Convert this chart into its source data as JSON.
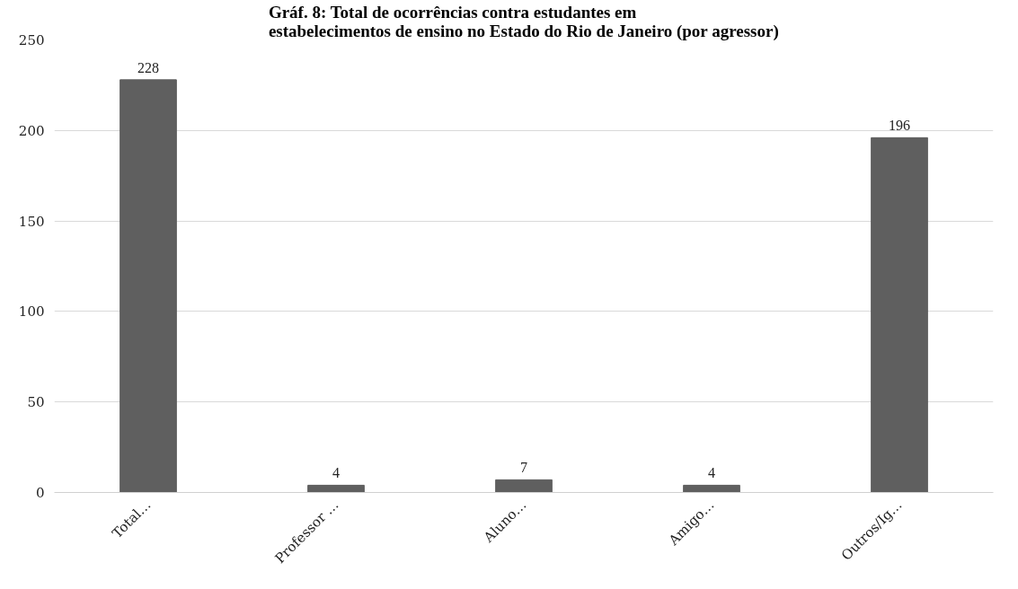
{
  "chart_data": {
    "type": "bar",
    "title": "Gráf. 8: Total de ocorrências contra estudantes em estabelecimentos de ensino no Estado do Rio de Janeiro (por agressor)",
    "categories": [
      "Total…",
      "Professor …",
      "Aluno…",
      "Amigo…",
      "Outros/Ig…"
    ],
    "values": [
      228,
      4,
      7,
      4,
      196
    ],
    "color": "#5f5f5f",
    "ylim": [
      0,
      250
    ],
    "yticks": [
      0,
      50,
      100,
      150,
      200,
      250
    ],
    "grid": "y",
    "data_labels": true
  }
}
